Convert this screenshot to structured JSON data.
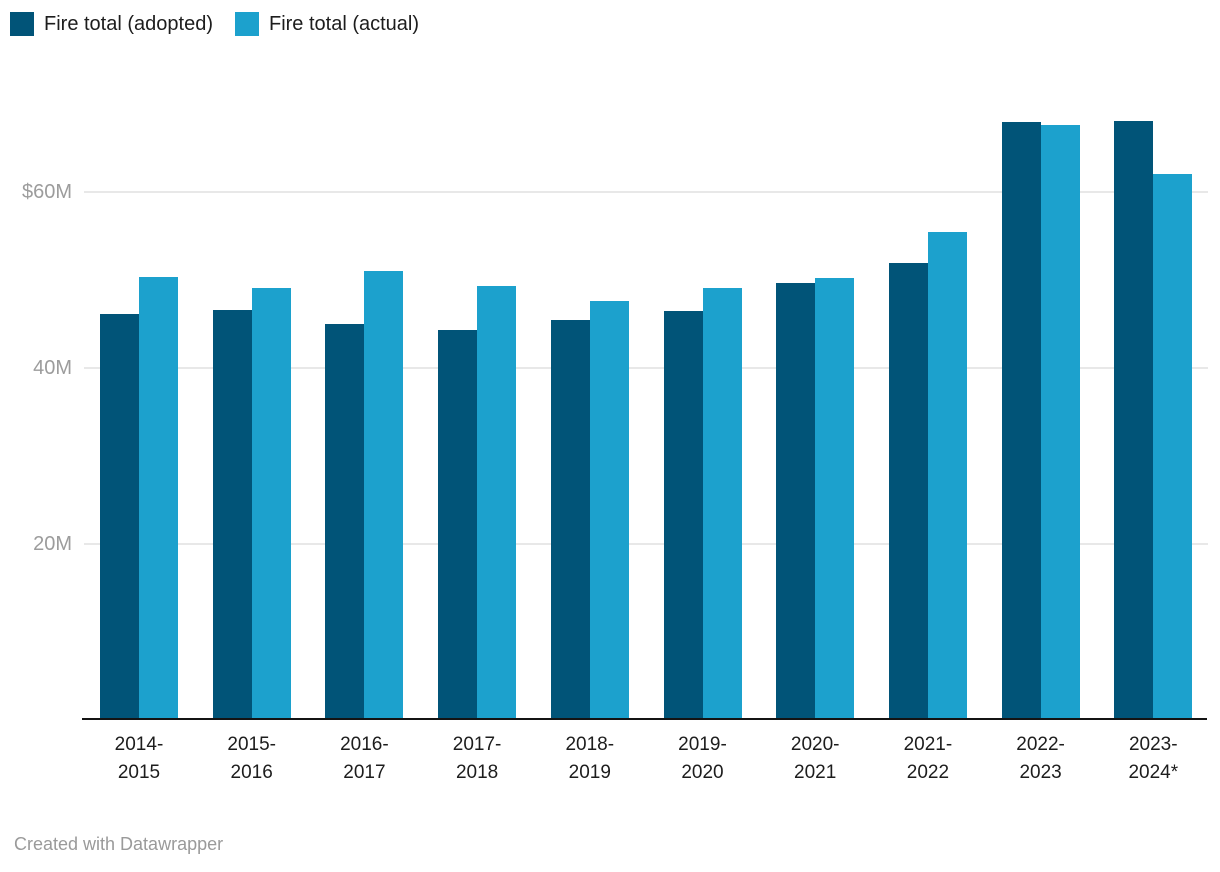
{
  "chart_data": {
    "type": "bar",
    "title": "",
    "legend_position": "top-left",
    "grid": "horizontal",
    "values_unit": "millions USD",
    "categories": [
      "2014-2015",
      "2015-2016",
      "2016-2017",
      "2017-2018",
      "2018-2019",
      "2019-2020",
      "2020-2021",
      "2021-2022",
      "2022-2023",
      "2023-2024*"
    ],
    "series": [
      {
        "key": "adopted",
        "name": "Fire total (adopted)",
        "color": "#015478",
        "values": [
          46.1,
          46.6,
          45.0,
          44.3,
          45.4,
          46.5,
          49.7,
          51.9,
          68.0,
          68.1
        ]
      },
      {
        "key": "actual",
        "name": "Fire total (actual)",
        "color": "#1ca1cd",
        "values": [
          50.3,
          49.1,
          51.0,
          49.3,
          47.6,
          49.1,
          50.2,
          55.5,
          67.6,
          62.1
        ]
      }
    ],
    "yticks": [
      {
        "value": 20,
        "label": "20M"
      },
      {
        "value": 40,
        "label": "40M"
      },
      {
        "value": 60,
        "label": "$60M"
      }
    ],
    "ylim": [
      0,
      70
    ]
  },
  "footer": {
    "credit": "Created with Datawrapper"
  }
}
